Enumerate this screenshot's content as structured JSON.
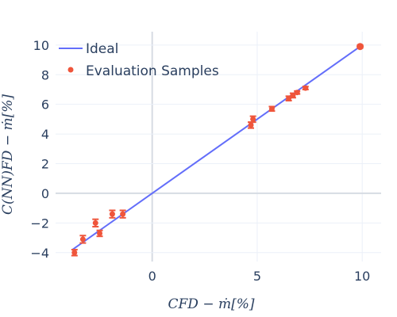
{
  "chart_data": {
    "type": "scatter",
    "xlabel": "CFD − ṁ[%]",
    "ylabel": "C(NN)FD − ṁ[%]",
    "xlim": [
      -4.6,
      10.9
    ],
    "ylim": [
      -4.6,
      10.9
    ],
    "x_ticks": [
      0,
      5,
      10
    ],
    "y_ticks": [
      -4,
      -2,
      0,
      2,
      4,
      6,
      8,
      10
    ],
    "grid": true,
    "legend_position": "top-left",
    "series": [
      {
        "name": "Ideal",
        "kind": "line",
        "color": "#636efa",
        "x": [
          -3.8,
          9.9
        ],
        "y": [
          -3.8,
          9.9
        ]
      },
      {
        "name": "Evaluation Samples",
        "kind": "markers",
        "color": "#ef553b",
        "points": [
          {
            "x": -3.7,
            "y": -4.0,
            "err": 0.2
          },
          {
            "x": -3.3,
            "y": -3.1,
            "err": 0.25
          },
          {
            "x": -2.7,
            "y": -2.0,
            "err": 0.25
          },
          {
            "x": -2.5,
            "y": -2.7,
            "err": 0.2
          },
          {
            "x": -1.9,
            "y": -1.4,
            "err": 0.25
          },
          {
            "x": -1.4,
            "y": -1.4,
            "err": 0.25
          },
          {
            "x": 4.7,
            "y": 4.6,
            "err": 0.2
          },
          {
            "x": 4.8,
            "y": 5.0,
            "err": 0.2
          },
          {
            "x": 5.7,
            "y": 5.7,
            "err": 0.15
          },
          {
            "x": 6.5,
            "y": 6.4,
            "err": 0.15
          },
          {
            "x": 6.7,
            "y": 6.6,
            "err": 0.15
          },
          {
            "x": 6.9,
            "y": 6.8,
            "err": 0.1
          },
          {
            "x": 7.3,
            "y": 7.1,
            "err": 0.1
          },
          {
            "x": 9.9,
            "y": 9.9,
            "err": 0.1
          }
        ]
      }
    ]
  },
  "legend": {
    "ideal_label": "Ideal",
    "samples_label": "Evaluation Samples"
  }
}
